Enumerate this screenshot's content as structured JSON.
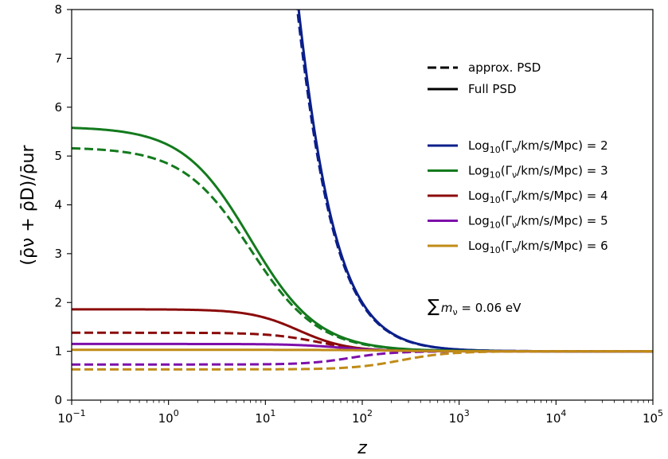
{
  "chart_data": {
    "type": "line",
    "xscale": "log",
    "xlim": [
      0.1,
      100000
    ],
    "ylim": [
      0,
      8
    ],
    "xlabel": "z",
    "ylabel": "(ρ̄ν + ρ̄D)/ρ̄ur",
    "x_ticks": [
      0.1,
      1,
      10,
      100,
      1000,
      10000,
      100000
    ],
    "x_tick_labels": [
      {
        "base": "10",
        "exp": "−1"
      },
      {
        "base": "10",
        "exp": "0"
      },
      {
        "base": "10",
        "exp": "1"
      },
      {
        "base": "10",
        "exp": "2"
      },
      {
        "base": "10",
        "exp": "3"
      },
      {
        "base": "10",
        "exp": "4"
      },
      {
        "base": "10",
        "exp": "5"
      }
    ],
    "y_ticks": [
      0,
      1,
      2,
      3,
      4,
      5,
      6,
      7,
      8
    ],
    "y_tick_labels": [
      "0",
      "1",
      "2",
      "3",
      "4",
      "5",
      "6",
      "7",
      "8"
    ],
    "style_legend": [
      {
        "label": "approx. PSD",
        "dash": "dashed"
      },
      {
        "label": "Full PSD",
        "dash": "solid"
      }
    ],
    "annotation": {
      "prefix": "∑",
      "var": "m",
      "sub": "ν",
      "suffix": " = 0.06 eV"
    },
    "series": [
      {
        "log_gamma": "2",
        "color": "#0b1f8a",
        "full": {
          "plateau": 30,
          "zt": 10,
          "w": 0.3
        },
        "approx": {
          "plateau": 29,
          "zt": 10,
          "w": 0.3
        }
      },
      {
        "log_gamma": "3",
        "color": "#137a1d",
        "full": {
          "plateau": 5.6,
          "zt": 7,
          "w": 0.35
        },
        "approx": {
          "plateau": 5.18,
          "zt": 7,
          "w": 0.35
        }
      },
      {
        "log_gamma": "4",
        "color": "#8b0a0a",
        "full": {
          "plateau": 1.86,
          "zt": 22,
          "w": 0.25
        },
        "approx": {
          "plateau": 1.38,
          "zt": 35,
          "w": 0.25
        }
      },
      {
        "log_gamma": "5",
        "color": "#7d0faa",
        "full": {
          "plateau": 1.15,
          "zt": 60,
          "w": 0.25
        },
        "approx": {
          "plateau": 0.73,
          "zt": 75,
          "w": 0.22
        }
      },
      {
        "log_gamma": "6",
        "color": "#c08b17",
        "full": {
          "plateau": 1.03,
          "zt": 200,
          "w": 0.3
        },
        "approx": {
          "plateau": 0.63,
          "zt": 250,
          "w": 0.25
        }
      }
    ],
    "asymptote": 1.0
  },
  "legend_label_template": {
    "prefix": "Log",
    "sub": "10",
    "paren_open": "(Γ",
    "paren_sub": "ν",
    "paren_rest": "/km/s/Mpc) = "
  }
}
